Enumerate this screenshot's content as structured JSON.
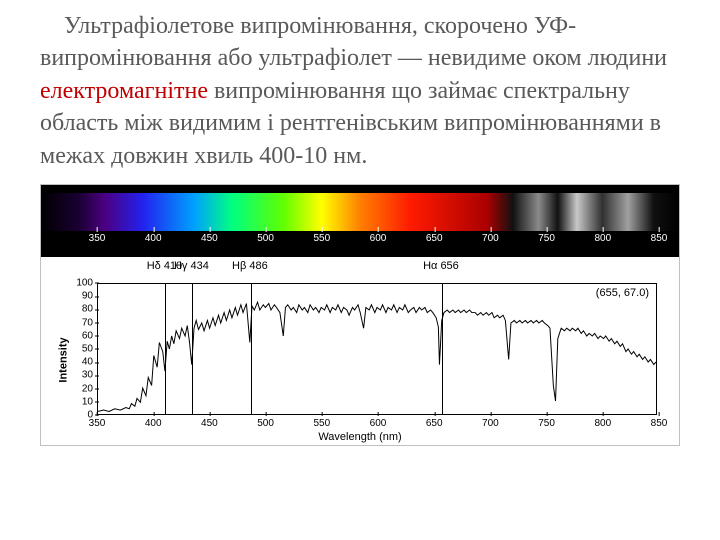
{
  "paragraph": {
    "sentence_a": " Ультрафіолетове випромінювання, скорочено УФ-випромінювання або ультрафіолет — невидиме оком людини ",
    "link_word": "електромагнітне ",
    "sentence_b": "випромінювання що займає спектральну область між видимим і рентгенівським випромінюваннями в межах довжин хвиль 400-10 нм."
  },
  "spectrum": {
    "xmin": 350,
    "xmax": 850,
    "ticks": [
      350,
      400,
      450,
      500,
      550,
      600,
      650,
      700,
      750,
      800,
      850
    ],
    "colors": [
      {
        "nm": 350,
        "c": "#000000"
      },
      {
        "nm": 380,
        "c": "#1a0033"
      },
      {
        "nm": 400,
        "c": "#4b0082"
      },
      {
        "nm": 430,
        "c": "#2222ee"
      },
      {
        "nm": 470,
        "c": "#00a0ff"
      },
      {
        "nm": 500,
        "c": "#00ff80"
      },
      {
        "nm": 540,
        "c": "#60ff00"
      },
      {
        "nm": 570,
        "c": "#ffff00"
      },
      {
        "nm": 600,
        "c": "#ff8000"
      },
      {
        "nm": 640,
        "c": "#ff1a00"
      },
      {
        "nm": 700,
        "c": "#aa0000"
      },
      {
        "nm": 720,
        "c": "#111111"
      },
      {
        "nm": 740,
        "c": "#8a8a8a"
      },
      {
        "nm": 755,
        "c": "#111111"
      },
      {
        "nm": 770,
        "c": "#c8c8c8"
      },
      {
        "nm": 790,
        "c": "#303030"
      },
      {
        "nm": 810,
        "c": "#a0a0a0"
      },
      {
        "nm": 830,
        "c": "#101010"
      },
      {
        "nm": 850,
        "c": "#000000"
      }
    ]
  },
  "hydrogen_lines": [
    {
      "label": "Hδ 410",
      "nm": 410
    },
    {
      "label": "Hγ 434",
      "nm": 434
    },
    {
      "label": "Hβ 486",
      "nm": 486
    },
    {
      "label": "Hα 656",
      "nm": 656
    }
  ],
  "plot": {
    "ylabel": "Intensity",
    "xlabel": "Wavelength (nm)",
    "readout": "(655, 67.0)",
    "xmin": 350,
    "xmax": 850,
    "ymin": 0,
    "ymax": 100,
    "yticks": [
      0,
      10,
      20,
      30,
      40,
      50,
      60,
      70,
      80,
      90,
      100
    ],
    "xticks": [
      350,
      400,
      450,
      500,
      550,
      600,
      650,
      700,
      750,
      800,
      850
    ],
    "vlines": [
      410,
      434,
      486,
      656
    ],
    "series": [
      [
        350,
        2
      ],
      [
        355,
        3
      ],
      [
        360,
        2
      ],
      [
        365,
        4
      ],
      [
        370,
        3
      ],
      [
        375,
        5
      ],
      [
        378,
        4
      ],
      [
        380,
        8
      ],
      [
        383,
        6
      ],
      [
        385,
        12
      ],
      [
        388,
        9
      ],
      [
        390,
        20
      ],
      [
        393,
        14
      ],
      [
        395,
        28
      ],
      [
        398,
        22
      ],
      [
        400,
        45
      ],
      [
        403,
        36
      ],
      [
        405,
        55
      ],
      [
        408,
        48
      ],
      [
        410,
        33
      ],
      [
        412,
        56
      ],
      [
        414,
        50
      ],
      [
        416,
        60
      ],
      [
        418,
        54
      ],
      [
        420,
        64
      ],
      [
        423,
        58
      ],
      [
        425,
        66
      ],
      [
        428,
        60
      ],
      [
        430,
        68
      ],
      [
        432,
        55
      ],
      [
        434,
        38
      ],
      [
        436,
        66
      ],
      [
        438,
        72
      ],
      [
        440,
        65
      ],
      [
        443,
        70
      ],
      [
        445,
        64
      ],
      [
        448,
        72
      ],
      [
        450,
        66
      ],
      [
        453,
        74
      ],
      [
        455,
        68
      ],
      [
        458,
        76
      ],
      [
        460,
        70
      ],
      [
        463,
        78
      ],
      [
        465,
        72
      ],
      [
        468,
        80
      ],
      [
        470,
        74
      ],
      [
        473,
        82
      ],
      [
        475,
        76
      ],
      [
        478,
        84
      ],
      [
        480,
        78
      ],
      [
        483,
        85
      ],
      [
        486,
        55
      ],
      [
        488,
        83
      ],
      [
        490,
        80
      ],
      [
        493,
        86
      ],
      [
        495,
        80
      ],
      [
        498,
        84
      ],
      [
        500,
        82
      ],
      [
        503,
        85
      ],
      [
        505,
        80
      ],
      [
        508,
        84
      ],
      [
        510,
        82
      ],
      [
        513,
        78
      ],
      [
        516,
        60
      ],
      [
        518,
        82
      ],
      [
        520,
        84
      ],
      [
        523,
        80
      ],
      [
        525,
        82
      ],
      [
        528,
        78
      ],
      [
        530,
        84
      ],
      [
        533,
        80
      ],
      [
        535,
        82
      ],
      [
        538,
        78
      ],
      [
        540,
        84
      ],
      [
        543,
        80
      ],
      [
        545,
        82
      ],
      [
        548,
        78
      ],
      [
        550,
        82
      ],
      [
        553,
        80
      ],
      [
        555,
        84
      ],
      [
        558,
        78
      ],
      [
        560,
        82
      ],
      [
        563,
        80
      ],
      [
        565,
        84
      ],
      [
        568,
        78
      ],
      [
        570,
        82
      ],
      [
        573,
        80
      ],
      [
        575,
        76
      ],
      [
        578,
        82
      ],
      [
        580,
        80
      ],
      [
        583,
        84
      ],
      [
        585,
        78
      ],
      [
        588,
        66
      ],
      [
        590,
        82
      ],
      [
        593,
        80
      ],
      [
        595,
        84
      ],
      [
        598,
        78
      ],
      [
        600,
        82
      ],
      [
        603,
        80
      ],
      [
        605,
        84
      ],
      [
        608,
        78
      ],
      [
        610,
        82
      ],
      [
        613,
        80
      ],
      [
        615,
        84
      ],
      [
        618,
        78
      ],
      [
        620,
        82
      ],
      [
        623,
        80
      ],
      [
        625,
        84
      ],
      [
        628,
        78
      ],
      [
        630,
        80
      ],
      [
        633,
        82
      ],
      [
        635,
        78
      ],
      [
        638,
        82
      ],
      [
        640,
        80
      ],
      [
        643,
        82
      ],
      [
        645,
        78
      ],
      [
        648,
        80
      ],
      [
        650,
        78
      ],
      [
        653,
        74
      ],
      [
        655,
        67
      ],
      [
        656,
        38
      ],
      [
        658,
        72
      ],
      [
        660,
        78
      ],
      [
        663,
        80
      ],
      [
        665,
        78
      ],
      [
        668,
        80
      ],
      [
        670,
        78
      ],
      [
        673,
        80
      ],
      [
        675,
        78
      ],
      [
        678,
        80
      ],
      [
        680,
        78
      ],
      [
        683,
        80
      ],
      [
        685,
        78
      ],
      [
        688,
        78
      ],
      [
        690,
        76
      ],
      [
        693,
        78
      ],
      [
        695,
        76
      ],
      [
        698,
        78
      ],
      [
        700,
        76
      ],
      [
        703,
        78
      ],
      [
        705,
        74
      ],
      [
        708,
        76
      ],
      [
        710,
        74
      ],
      [
        713,
        76
      ],
      [
        715,
        72
      ],
      [
        718,
        42
      ],
      [
        720,
        70
      ],
      [
        723,
        72
      ],
      [
        725,
        70
      ],
      [
        728,
        72
      ],
      [
        730,
        70
      ],
      [
        733,
        72
      ],
      [
        735,
        70
      ],
      [
        738,
        72
      ],
      [
        740,
        70
      ],
      [
        743,
        72
      ],
      [
        745,
        70
      ],
      [
        748,
        72
      ],
      [
        750,
        70
      ],
      [
        753,
        68
      ],
      [
        755,
        66
      ],
      [
        758,
        22
      ],
      [
        760,
        10
      ],
      [
        762,
        58
      ],
      [
        765,
        66
      ],
      [
        768,
        64
      ],
      [
        770,
        66
      ],
      [
        773,
        64
      ],
      [
        775,
        66
      ],
      [
        778,
        64
      ],
      [
        780,
        66
      ],
      [
        783,
        62
      ],
      [
        785,
        64
      ],
      [
        788,
        60
      ],
      [
        790,
        62
      ],
      [
        793,
        60
      ],
      [
        795,
        62
      ],
      [
        798,
        58
      ],
      [
        800,
        60
      ],
      [
        803,
        58
      ],
      [
        805,
        60
      ],
      [
        808,
        56
      ],
      [
        810,
        58
      ],
      [
        813,
        54
      ],
      [
        815,
        56
      ],
      [
        818,
        52
      ],
      [
        820,
        54
      ],
      [
        823,
        48
      ],
      [
        825,
        50
      ],
      [
        828,
        46
      ],
      [
        830,
        48
      ],
      [
        833,
        44
      ],
      [
        835,
        46
      ],
      [
        838,
        42
      ],
      [
        840,
        44
      ],
      [
        843,
        40
      ],
      [
        845,
        42
      ],
      [
        848,
        38
      ],
      [
        850,
        40
      ]
    ]
  },
  "style": {
    "text_color": "#595959",
    "accent_color": "#c00000",
    "font_size_pt": 18
  }
}
